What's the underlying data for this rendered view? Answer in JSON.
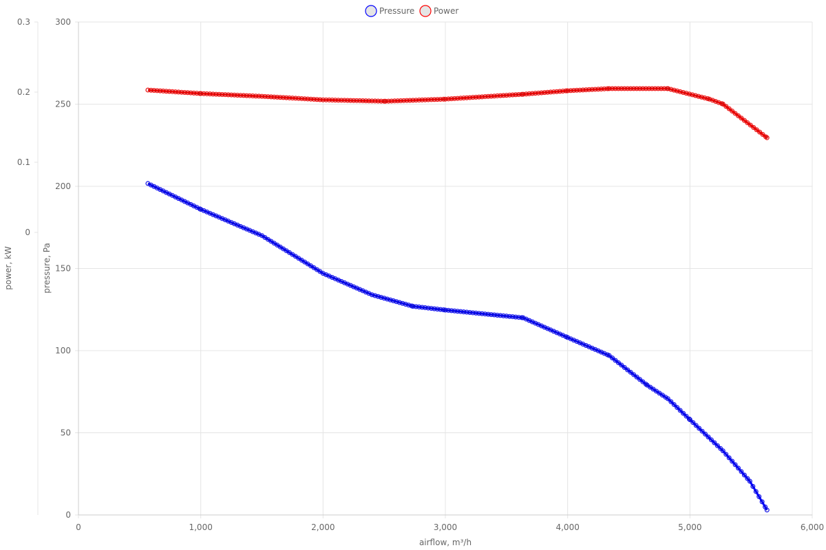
{
  "chart_data": {
    "type": "scatter",
    "xlabel": "airflow, m³/h",
    "xlim": [
      0,
      6000
    ],
    "x_ticks": [
      "0",
      "1,000",
      "2,000",
      "3,000",
      "4,000",
      "5,000",
      "6,000"
    ],
    "x_tick_values": [
      0,
      1000,
      2000,
      3000,
      4000,
      5000,
      6000
    ],
    "y_axes": [
      {
        "id": "pressure",
        "label": "pressure, Pa",
        "ylim": [
          0,
          300
        ],
        "ticks": [
          "0",
          "50",
          "100",
          "150",
          "200",
          "250",
          "300"
        ],
        "tick_values": [
          0,
          50,
          100,
          150,
          200,
          250,
          300
        ]
      },
      {
        "id": "power",
        "label": "power, kW",
        "ylim": [
          -0.4029,
          0.3
        ],
        "ticks": [
          "0",
          "0.1",
          "0.2",
          "0.3"
        ],
        "tick_values": [
          0,
          0.1,
          0.2,
          0.3
        ]
      }
    ],
    "grid": true,
    "legend": {
      "placement": "top-center",
      "entries": [
        "Pressure",
        "Power"
      ]
    },
    "series": [
      {
        "name": "Pressure",
        "axis": "pressure",
        "color": "#0000ff",
        "x": [
          568,
          1000,
          1500,
          2000,
          2400,
          2735,
          3000,
          3636,
          4000,
          4340,
          4650,
          4820,
          5000,
          5270,
          5490,
          5630
        ],
        "y": [
          201.7,
          186,
          170,
          147,
          134,
          127,
          124.7,
          120,
          108,
          97,
          79,
          70.7,
          58,
          39,
          20.5,
          3
        ]
      },
      {
        "name": "Power",
        "axis": "power",
        "color": "#ff0000",
        "x": [
          568,
          1000,
          1500,
          2000,
          2510,
          3000,
          3636,
          4000,
          4340,
          4820,
          5160,
          5270,
          5630
        ],
        "y": [
          0.203,
          0.198,
          0.194,
          0.189,
          0.187,
          0.19,
          0.197,
          0.202,
          0.205,
          0.205,
          0.19,
          0.183,
          0.135
        ]
      }
    ]
  }
}
